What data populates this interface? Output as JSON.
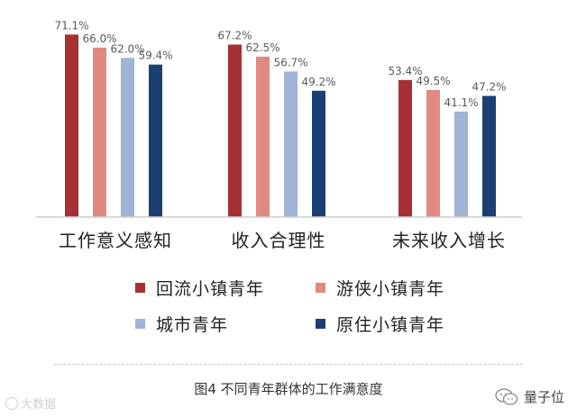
{
  "chart_data": {
    "type": "bar",
    "categories": [
      "工作意义感知",
      "收入合理性",
      "未来收入增长"
    ],
    "series": [
      {
        "name": "回流小镇青年",
        "values": [
          71.1,
          67.2,
          53.4
        ],
        "labels": [
          "71.1%",
          "67.2%",
          "53.4%"
        ],
        "color": "#a73034"
      },
      {
        "name": "游侠小镇青年",
        "values": [
          66.0,
          62.5,
          49.5
        ],
        "labels": [
          "66.0%",
          "62.5%",
          "49.5%"
        ],
        "color": "#e08980"
      },
      {
        "name": "城市青年",
        "values": [
          62.0,
          56.7,
          41.1
        ],
        "labels": [
          "62.0%",
          "56.7%",
          "41.1%"
        ],
        "color": "#9fb4d6"
      },
      {
        "name": "原住小镇青年",
        "values": [
          59.4,
          49.2,
          47.2
        ],
        "labels": [
          "59.4%",
          "49.2%",
          "47.2%"
        ],
        "color": "#1c3f73"
      }
    ],
    "ylim": [
      0,
      80
    ],
    "grid": false,
    "legend_position": "bottom",
    "label_color": "#5a5a5a"
  },
  "caption": "图4 不同青年群体的工作满意度",
  "watermark_left": "大数据",
  "watermark_right": "量子位"
}
